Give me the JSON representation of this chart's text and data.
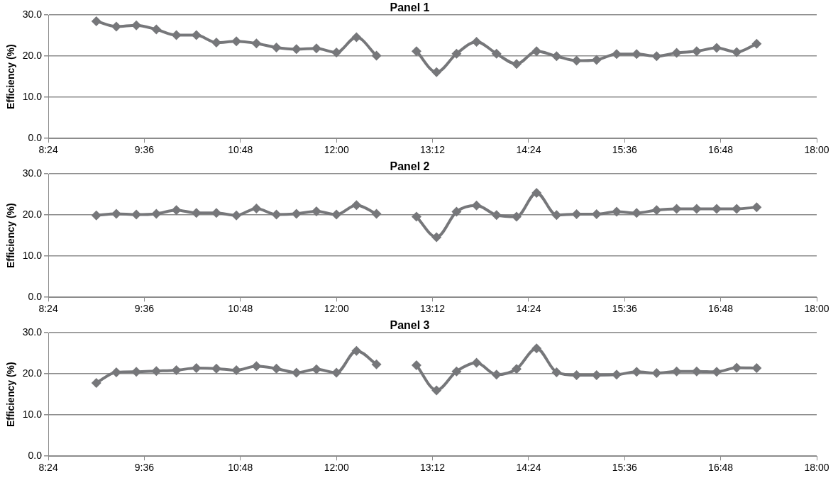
{
  "chart_data": [
    {
      "type": "line",
      "title": "Panel 1",
      "ylabel": "Efficiency (%)",
      "color": "#76777a",
      "marker": "diamond",
      "grid": "y",
      "x": [
        9,
        9.25,
        9.5,
        9.75,
        10,
        10.25,
        10.5,
        10.75,
        11,
        11.25,
        11.5,
        11.75,
        12,
        12.25,
        12.5,
        12.75,
        13,
        13.25,
        13.5,
        13.75,
        14,
        14.25,
        14.5,
        14.75,
        15,
        15.25,
        15.5,
        15.75,
        16,
        16.25,
        16.5,
        16.75,
        17,
        17.25
      ],
      "values": [
        28.5,
        27.2,
        27.5,
        26.5,
        25.1,
        25.1,
        23.3,
        23.6,
        23.1,
        22.1,
        21.7,
        21.9,
        20.9,
        24.6,
        20.1,
        null,
        21.2,
        16.1,
        20.6,
        23.5,
        20.6,
        18.1,
        21.2,
        20.0,
        18.9,
        19.1,
        20.5,
        20.5,
        20.0,
        20.8,
        21.2,
        22.0,
        21.0,
        23.0
      ],
      "xlim": [
        8.4,
        18
      ],
      "xticks": [
        {
          "value": 8.4,
          "label": "8:24"
        },
        {
          "value": 9.6,
          "label": "9:36"
        },
        {
          "value": 10.8,
          "label": "10:48"
        },
        {
          "value": 12,
          "label": "12:00"
        },
        {
          "value": 13.2,
          "label": "13:12"
        },
        {
          "value": 14.4,
          "label": "14:24"
        },
        {
          "value": 15.6,
          "label": "15:36"
        },
        {
          "value": 16.8,
          "label": "16:48"
        },
        {
          "value": 18,
          "label": "18:00"
        }
      ],
      "ylim": [
        0,
        30
      ],
      "yticks": [
        {
          "value": 0,
          "label": "0.0"
        },
        {
          "value": 10,
          "label": "10.0"
        },
        {
          "value": 20,
          "label": "20.0"
        },
        {
          "value": 30,
          "label": "30.0"
        }
      ]
    },
    {
      "type": "line",
      "title": "Panel 2",
      "ylabel": "Efficiency (%)",
      "color": "#76777a",
      "marker": "diamond",
      "grid": "y",
      "x": [
        9,
        9.25,
        9.5,
        9.75,
        10,
        10.25,
        10.5,
        10.75,
        11,
        11.25,
        11.5,
        11.75,
        12,
        12.25,
        12.5,
        12.75,
        13,
        13.25,
        13.5,
        13.75,
        14,
        14.25,
        14.5,
        14.75,
        15,
        15.25,
        15.5,
        15.75,
        16,
        16.25,
        16.5,
        16.75,
        17,
        17.25
      ],
      "values": [
        19.9,
        20.3,
        20.1,
        20.3,
        21.2,
        20.5,
        20.5,
        19.9,
        21.6,
        20.1,
        20.3,
        20.9,
        20.1,
        22.4,
        20.3,
        null,
        19.6,
        14.6,
        20.8,
        22.3,
        20.0,
        19.6,
        25.4,
        20.0,
        20.2,
        20.2,
        20.8,
        20.5,
        21.2,
        21.5,
        21.5,
        21.5,
        21.5,
        21.9
      ],
      "xlim": [
        8.4,
        18
      ],
      "xticks": [
        {
          "value": 8.4,
          "label": "8:24"
        },
        {
          "value": 9.6,
          "label": "9:36"
        },
        {
          "value": 10.8,
          "label": "10:48"
        },
        {
          "value": 12,
          "label": "12:00"
        },
        {
          "value": 13.2,
          "label": "13:12"
        },
        {
          "value": 14.4,
          "label": "14:24"
        },
        {
          "value": 15.6,
          "label": "15:36"
        },
        {
          "value": 16.8,
          "label": "16:48"
        },
        {
          "value": 18,
          "label": "18:00"
        }
      ],
      "ylim": [
        0,
        30
      ],
      "yticks": [
        {
          "value": 0,
          "label": "0.0"
        },
        {
          "value": 10,
          "label": "10.0"
        },
        {
          "value": 20,
          "label": "20.0"
        },
        {
          "value": 30,
          "label": "30.0"
        }
      ]
    },
    {
      "type": "line",
      "title": "Panel 3",
      "ylabel": "Efficiency (%)",
      "color": "#76777a",
      "marker": "diamond",
      "grid": "y",
      "x": [
        9,
        9.25,
        9.5,
        9.75,
        10,
        10.25,
        10.5,
        10.75,
        11,
        11.25,
        11.5,
        11.75,
        12,
        12.25,
        12.5,
        12.75,
        13,
        13.25,
        13.5,
        13.75,
        14,
        14.25,
        14.5,
        14.75,
        15,
        15.25,
        15.5,
        15.75,
        16,
        16.25,
        16.5,
        16.75,
        17,
        17.25
      ],
      "values": [
        17.8,
        20.4,
        20.5,
        20.7,
        20.9,
        21.4,
        21.3,
        20.9,
        21.9,
        21.3,
        20.3,
        21.1,
        20.3,
        25.6,
        22.3,
        null,
        22.1,
        16.0,
        20.6,
        22.7,
        19.8,
        21.2,
        26.2,
        20.4,
        19.7,
        19.7,
        19.8,
        20.5,
        20.2,
        20.6,
        20.6,
        20.5,
        21.5,
        21.4
      ],
      "xlim": [
        8.4,
        18
      ],
      "xticks": [
        {
          "value": 8.4,
          "label": "8:24"
        },
        {
          "value": 9.6,
          "label": "9:36"
        },
        {
          "value": 10.8,
          "label": "10:48"
        },
        {
          "value": 12,
          "label": "12:00"
        },
        {
          "value": 13.2,
          "label": "13:12"
        },
        {
          "value": 14.4,
          "label": "14:24"
        },
        {
          "value": 15.6,
          "label": "15:36"
        },
        {
          "value": 16.8,
          "label": "16:48"
        },
        {
          "value": 18,
          "label": "18:00"
        }
      ],
      "ylim": [
        0,
        30
      ],
      "yticks": [
        {
          "value": 0,
          "label": "0.0"
        },
        {
          "value": 10,
          "label": "10.0"
        },
        {
          "value": 20,
          "label": "20.0"
        },
        {
          "value": 30,
          "label": "30.0"
        }
      ]
    }
  ]
}
